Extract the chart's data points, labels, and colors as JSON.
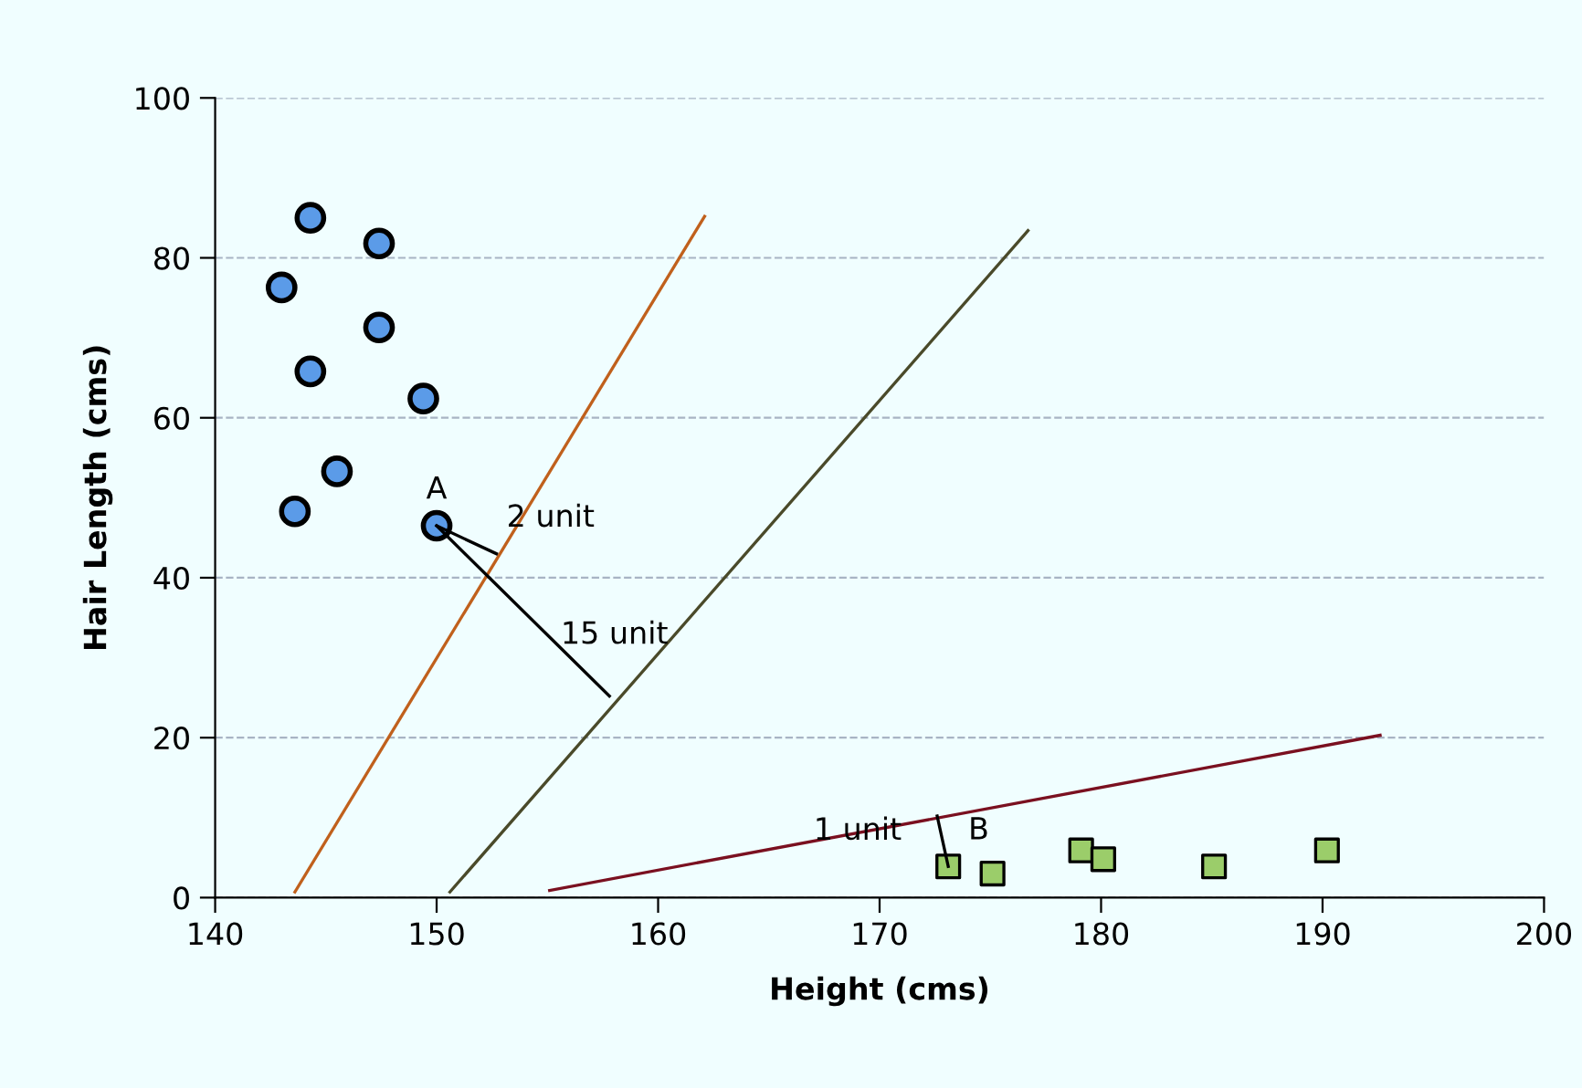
{
  "chart_data": {
    "type": "scatter",
    "xlabel": "Height (cms)",
    "ylabel": "Hair Length (cms)",
    "xlim": [
      140,
      200
    ],
    "ylim": [
      0,
      100
    ],
    "xticks": [
      140,
      150,
      160,
      170,
      180,
      190,
      200
    ],
    "yticks": [
      0,
      20,
      40,
      60,
      80,
      100
    ],
    "grid": "y",
    "legend": false,
    "series": [
      {
        "marker": "circle",
        "color": "#5b9be8",
        "x": [
          144.3,
          147.4,
          143.0,
          147.4,
          144.3,
          149.4,
          145.5,
          143.6,
          150.0
        ],
        "values": [
          85.0,
          81.8,
          76.3,
          71.3,
          65.8,
          62.4,
          53.3,
          48.3,
          46.5
        ]
      },
      {
        "marker": "square",
        "color": "#9bcd6a",
        "x": [
          173.1,
          175.1,
          179.1,
          180.1,
          185.1,
          190.2
        ],
        "values": [
          3.9,
          3.0,
          5.9,
          4.8,
          3.9,
          5.9
        ]
      },
      {
        "type": "line",
        "color": "#c0601c",
        "x": [
          143.6,
          162.1
        ],
        "values": [
          0.7,
          85.2
        ]
      },
      {
        "type": "line",
        "color": "#4a4a2a",
        "x": [
          150.6,
          176.7
        ],
        "values": [
          0.7,
          83.4
        ]
      },
      {
        "type": "line",
        "color": "#7a1020",
        "x": [
          155.1,
          192.6
        ],
        "values": [
          0.9,
          20.3
        ]
      },
      {
        "type": "line",
        "color": "#000000",
        "x": [
          150.0,
          152.7
        ],
        "values": [
          46.5,
          43.0
        ]
      },
      {
        "type": "line",
        "color": "#000000",
        "x": [
          150.0,
          157.8
        ],
        "values": [
          46.5,
          25.2
        ]
      },
      {
        "type": "line",
        "color": "#000000",
        "x": [
          172.6,
          173.1
        ],
        "values": [
          10.2,
          3.9
        ]
      }
    ],
    "annotations": [
      {
        "text": "A",
        "x": 150.0,
        "y": 46.5
      },
      {
        "text": "2 unit",
        "x": 152.7,
        "y": 43.0
      },
      {
        "text": "15 unit",
        "x": 157.8,
        "y": 25.2
      },
      {
        "text": "1 unit",
        "x": 172.6,
        "y": 10.2
      },
      {
        "text": "B",
        "x": 173.1,
        "y": 3.9
      }
    ]
  }
}
